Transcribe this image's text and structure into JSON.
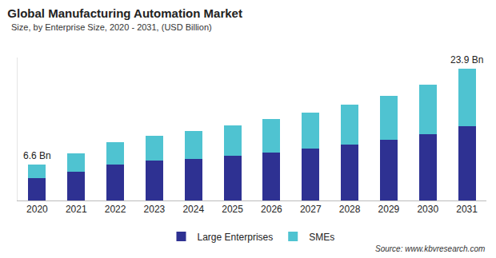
{
  "chart_data": {
    "type": "bar",
    "title": "Global Manufacturing Automation Market",
    "subtitle": "Size, by Enterprise Size, 2020 - 2031, (USD Billion)",
    "categories": [
      "2020",
      "2021",
      "2022",
      "2023",
      "2024",
      "2025",
      "2026",
      "2027",
      "2028",
      "2029",
      "2030",
      "2031"
    ],
    "series": [
      {
        "name": "Large Enterprises",
        "color": "#2e3192",
        "values": [
          4.1,
          5.2,
          6.6,
          7.2,
          7.6,
          8.1,
          8.7,
          9.4,
          10.2,
          11.1,
          12.1,
          13.5
        ]
      },
      {
        "name": "SMEs",
        "color": "#4fc3d1",
        "values": [
          2.5,
          3.3,
          4.0,
          4.6,
          5.1,
          5.5,
          6.1,
          6.6,
          7.3,
          8.0,
          9.0,
          10.4
        ]
      }
    ],
    "stacked": true,
    "ylim": [
      0,
      26
    ],
    "yticks": [],
    "tick_labels": "x",
    "grid": false,
    "legend": "bottom",
    "annotations": [
      {
        "text": "6.6 Bn",
        "category": "2020",
        "value": 6.6
      },
      {
        "text": "23.9 Bn",
        "category": "2031",
        "value": 23.9
      }
    ],
    "source": "Source: www.kbvresearch.com"
  }
}
